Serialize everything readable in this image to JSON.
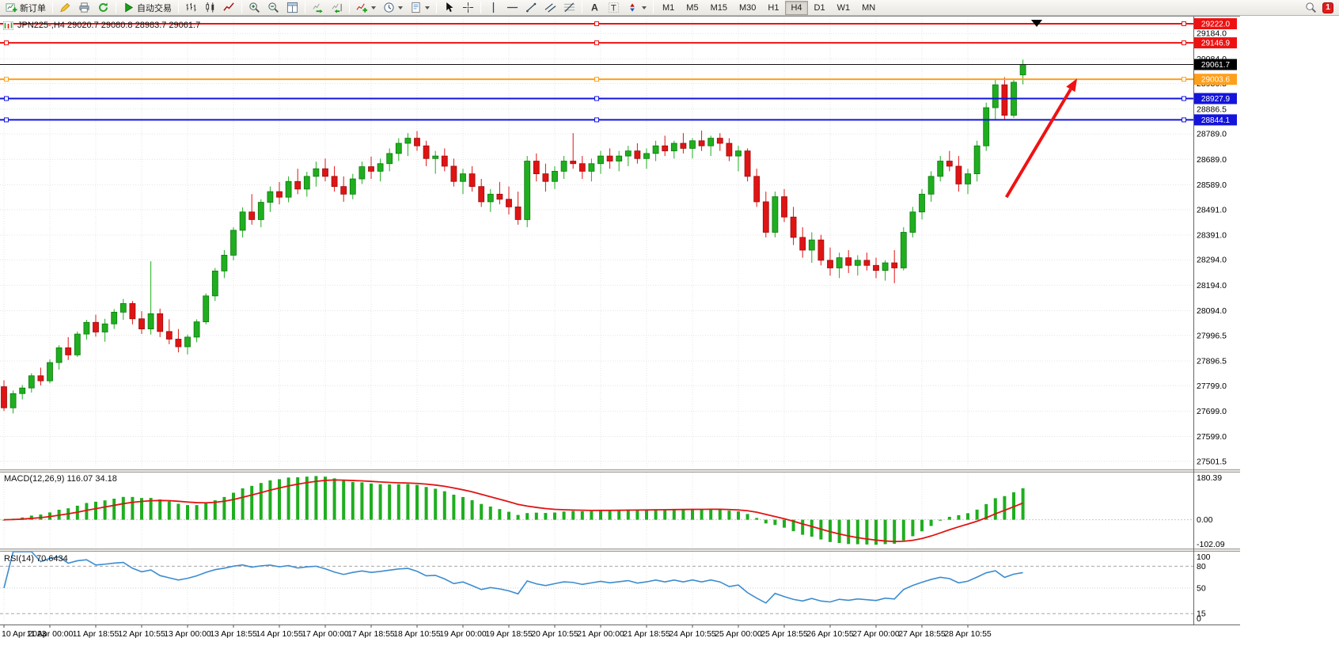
{
  "toolbar": {
    "new_order_label": "新订单",
    "autotrading_label": "自动交易",
    "timeframes": [
      "M1",
      "M5",
      "M15",
      "M30",
      "H1",
      "H4",
      "D1",
      "W1",
      "MN"
    ],
    "active_timeframe": "H4",
    "notification_count": "1",
    "icons": [
      "new-order-icon",
      "pencil-icon",
      "printer-icon",
      "refresh-icon",
      "autotrading-play-icon",
      "bar-chart-icon",
      "candlestick-chart-icon",
      "line-chart-icon",
      "zoom-in-icon",
      "zoom-out-icon",
      "tile-windows-icon",
      "auto-scroll-icon",
      "chart-shift-icon",
      "indicators-icon",
      "periods-icon",
      "templates-icon",
      "cursor-icon",
      "crosshair-icon",
      "vertical-line-icon",
      "horizontal-line-icon",
      "trendline-icon",
      "channel-icon",
      "fibonacci-icon",
      "text-icon",
      "label-icon",
      "arrows-icon",
      "search-icon"
    ]
  },
  "chart": {
    "legend": "JPN225-,H4 29020.7 29080.8 28983.7 29061.7"
  },
  "chart_data": {
    "type": "candlestick",
    "symbol": "JPN225-",
    "timeframe": "H4",
    "last_bar": {
      "open": 29020.7,
      "high": 29080.8,
      "low": 28983.7,
      "close": 29061.7
    },
    "bull_color": "#1fae1f",
    "bear_color": "#e01414",
    "price_axis": {
      "min": 27470,
      "max": 29250,
      "ticks": [
        29184,
        29084,
        28986.5,
        28886.5,
        28789,
        28689,
        28589,
        28491,
        28391,
        28294,
        28194,
        28094,
        27996.5,
        27896.5,
        27799,
        27699,
        27599,
        27501.5
      ]
    },
    "horizontal_lines": [
      {
        "price": 29222.0,
        "label": "29222.0",
        "color": "#ee1111"
      },
      {
        "price": 29146.9,
        "label": "29146.9",
        "color": "#ee1111"
      },
      {
        "price": 29003.6,
        "label": "29003.6",
        "color": "#ff9f1a"
      },
      {
        "price": 28927.9,
        "label": "28927.9",
        "color": "#1414dd"
      },
      {
        "price": 28844.1,
        "label": "28844.1",
        "color": "#1414dd"
      }
    ],
    "current_price": {
      "price": 29061.7,
      "label": "29061.7",
      "tag_color": "#000000"
    },
    "trend_arrow": {
      "from_bar": 109.2,
      "from_price": 28540,
      "to_bar": 116.9,
      "to_price": 29007,
      "color": "#f01212"
    },
    "candles": [
      [
        27795,
        27820,
        27700,
        27712
      ],
      [
        27712,
        27780,
        27690,
        27768
      ],
      [
        27768,
        27802,
        27745,
        27790
      ],
      [
        27790,
        27848,
        27772,
        27838
      ],
      [
        27838,
        27870,
        27800,
        27818
      ],
      [
        27818,
        27902,
        27808,
        27890
      ],
      [
        27890,
        27958,
        27862,
        27948
      ],
      [
        27948,
        27990,
        27900,
        27920
      ],
      [
        27920,
        28012,
        27912,
        28002
      ],
      [
        28002,
        28058,
        27980,
        28048
      ],
      [
        28048,
        28078,
        27992,
        28010
      ],
      [
        28010,
        28062,
        27972,
        28042
      ],
      [
        28042,
        28100,
        28022,
        28088
      ],
      [
        28088,
        28140,
        28058,
        28122
      ],
      [
        28122,
        28132,
        28040,
        28062
      ],
      [
        28062,
        28092,
        28002,
        28022
      ],
      [
        28022,
        28288,
        28000,
        28082
      ],
      [
        28082,
        28102,
        27990,
        28012
      ],
      [
        28012,
        28060,
        27962,
        27982
      ],
      [
        27982,
        28022,
        27930,
        27952
      ],
      [
        27952,
        28000,
        27922,
        27990
      ],
      [
        27990,
        28060,
        27970,
        28050
      ],
      [
        28050,
        28162,
        28040,
        28152
      ],
      [
        28152,
        28262,
        28132,
        28250
      ],
      [
        28250,
        28332,
        28222,
        28312
      ],
      [
        28312,
        28422,
        28292,
        28410
      ],
      [
        28410,
        28500,
        28382,
        28482
      ],
      [
        28482,
        28552,
        28432,
        28452
      ],
      [
        28452,
        28532,
        28422,
        28520
      ],
      [
        28520,
        28582,
        28482,
        28562
      ],
      [
        28562,
        28600,
        28512,
        28540
      ],
      [
        28540,
        28622,
        28520,
        28602
      ],
      [
        28602,
        28652,
        28552,
        28572
      ],
      [
        28572,
        28640,
        28542,
        28622
      ],
      [
        28622,
        28680,
        28582,
        28652
      ],
      [
        28652,
        28692,
        28602,
        28622
      ],
      [
        28622,
        28662,
        28562,
        28582
      ],
      [
        28582,
        28622,
        28522,
        28552
      ],
      [
        28552,
        28632,
        28532,
        28612
      ],
      [
        28612,
        28680,
        28592,
        28660
      ],
      [
        28660,
        28700,
        28612,
        28642
      ],
      [
        28642,
        28692,
        28602,
        28672
      ],
      [
        28672,
        28732,
        28642,
        28712
      ],
      [
        28712,
        28772,
        28682,
        28752
      ],
      [
        28752,
        28792,
        28702,
        28772
      ],
      [
        28772,
        28800,
        28722,
        28742
      ],
      [
        28742,
        28762,
        28662,
        28692
      ],
      [
        28692,
        28722,
        28632,
        28702
      ],
      [
        28702,
        28732,
        28642,
        28662
      ],
      [
        28662,
        28692,
        28582,
        28602
      ],
      [
        28602,
        28652,
        28552,
        28632
      ],
      [
        28632,
        28662,
        28562,
        28582
      ],
      [
        28582,
        28612,
        28502,
        28522
      ],
      [
        28522,
        28572,
        28482,
        28552
      ],
      [
        28552,
        28600,
        28512,
        28532
      ],
      [
        28532,
        28582,
        28472,
        28502
      ],
      [
        28502,
        28562,
        28432,
        28452
      ],
      [
        28452,
        28702,
        28422,
        28682
      ],
      [
        28682,
        28712,
        28602,
        28632
      ],
      [
        28632,
        28672,
        28562,
        28602
      ],
      [
        28602,
        28662,
        28572,
        28642
      ],
      [
        28642,
        28702,
        28612,
        28682
      ],
      [
        28682,
        28792,
        28652,
        28672
      ],
      [
        28672,
        28702,
        28612,
        28642
      ],
      [
        28642,
        28692,
        28602,
        28672
      ],
      [
        28672,
        28722,
        28632,
        28702
      ],
      [
        28702,
        28732,
        28652,
        28682
      ],
      [
        28682,
        28722,
        28642,
        28702
      ],
      [
        28702,
        28742,
        28662,
        28722
      ],
      [
        28722,
        28752,
        28672,
        28692
      ],
      [
        28692,
        28732,
        28652,
        28712
      ],
      [
        28712,
        28762,
        28682,
        28742
      ],
      [
        28742,
        28782,
        28702,
        28722
      ],
      [
        28722,
        28762,
        28692,
        28752
      ],
      [
        28752,
        28792,
        28712,
        28732
      ],
      [
        28732,
        28772,
        28692,
        28762
      ],
      [
        28762,
        28802,
        28722,
        28742
      ],
      [
        28742,
        28782,
        28702,
        28772
      ],
      [
        28772,
        28792,
        28722,
        28752
      ],
      [
        28752,
        28772,
        28682,
        28702
      ],
      [
        28702,
        28742,
        28642,
        28722
      ],
      [
        28722,
        28732,
        28602,
        28622
      ],
      [
        28622,
        28652,
        28502,
        28522
      ],
      [
        28522,
        28562,
        28382,
        28402
      ],
      [
        28402,
        28562,
        28382,
        28542
      ],
      [
        28542,
        28572,
        28442,
        28462
      ],
      [
        28462,
        28502,
        28352,
        28382
      ],
      [
        28382,
        28422,
        28302,
        28332
      ],
      [
        28332,
        28402,
        28282,
        28372
      ],
      [
        28372,
        28392,
        28272,
        28292
      ],
      [
        28292,
        28342,
        28232,
        28262
      ],
      [
        28262,
        28322,
        28222,
        28302
      ],
      [
        28302,
        28332,
        28242,
        28272
      ],
      [
        28272,
        28312,
        28232,
        28292
      ],
      [
        28292,
        28322,
        28252,
        28272
      ],
      [
        28272,
        28302,
        28222,
        28252
      ],
      [
        28252,
        28292,
        28212,
        28282
      ],
      [
        28282,
        28332,
        28202,
        28262
      ],
      [
        28262,
        28422,
        28252,
        28402
      ],
      [
        28402,
        28502,
        28382,
        28482
      ],
      [
        28482,
        28572,
        28452,
        28552
      ],
      [
        28552,
        28642,
        28522,
        28622
      ],
      [
        28622,
        28702,
        28602,
        28682
      ],
      [
        28682,
        28722,
        28642,
        28662
      ],
      [
        28662,
        28702,
        28562,
        28592
      ],
      [
        28592,
        28652,
        28552,
        28632
      ],
      [
        28632,
        28762,
        28602,
        28742
      ],
      [
        28742,
        28912,
        28722,
        28892
      ],
      [
        28892,
        29002,
        28842,
        28982
      ],
      [
        28982,
        29012,
        28842,
        28862
      ],
      [
        28862,
        29002,
        28852,
        28992
      ],
      [
        29020.7,
        29080.8,
        28983.7,
        29061.7
      ]
    ],
    "time_labels": [
      {
        "bar": 0,
        "text": "10 Apr 2023"
      },
      {
        "bar": 5,
        "text": "11 Apr 00:00"
      },
      {
        "bar": 10,
        "text": "11 Apr 18:55"
      },
      {
        "bar": 15,
        "text": "12 Apr 10:55"
      },
      {
        "bar": 20,
        "text": "13 Apr 00:00"
      },
      {
        "bar": 25,
        "text": "13 Apr 18:55"
      },
      {
        "bar": 30,
        "text": "14 Apr 10:55"
      },
      {
        "bar": 35,
        "text": "17 Apr 00:00"
      },
      {
        "bar": 40,
        "text": "17 Apr 18:55"
      },
      {
        "bar": 45,
        "text": "18 Apr 10:55"
      },
      {
        "bar": 50,
        "text": "19 Apr 00:00"
      },
      {
        "bar": 55,
        "text": "19 Apr 18:55"
      },
      {
        "bar": 60,
        "text": "20 Apr 10:55"
      },
      {
        "bar": 65,
        "text": "21 Apr 00:00"
      },
      {
        "bar": 70,
        "text": "21 Apr 18:55"
      },
      {
        "bar": 75,
        "text": "24 Apr 10:55"
      },
      {
        "bar": 80,
        "text": "25 Apr 00:00"
      },
      {
        "bar": 85,
        "text": "25 Apr 18:55"
      },
      {
        "bar": 90,
        "text": "26 Apr 10:55"
      },
      {
        "bar": 95,
        "text": "27 Apr 00:00"
      },
      {
        "bar": 100,
        "text": "27 Apr 18:55"
      },
      {
        "bar": 105,
        "text": "28 Apr 10:55"
      }
    ],
    "macd": {
      "label": "MACD(12,26,9) 116.07 34.18",
      "fast": 12,
      "slow": 26,
      "signal_period": 9,
      "value": 116.07,
      "signal_value": 34.18,
      "axis_labels": {
        "top": "180.39",
        "zero": "0.00",
        "bottom": "-102.09"
      },
      "histogram_color": "#1fae1f",
      "signal_color": "#e01414"
    },
    "rsi": {
      "label": "RSI(14) 70.6434",
      "period": 14,
      "value": 70.6434,
      "line_color": "#3c8cd0",
      "levels": [
        {
          "value": 80,
          "style": "dashed"
        },
        {
          "value": 50,
          "style": "dotted"
        },
        {
          "value": 15,
          "style": "dashed"
        }
      ],
      "ticks": [
        {
          "value": 100,
          "label": "100"
        },
        {
          "value": 80,
          "label": "80"
        },
        {
          "value": 50,
          "label": "50"
        },
        {
          "value": 15,
          "label": "15"
        },
        {
          "value": 0,
          "label": "0"
        }
      ]
    }
  }
}
